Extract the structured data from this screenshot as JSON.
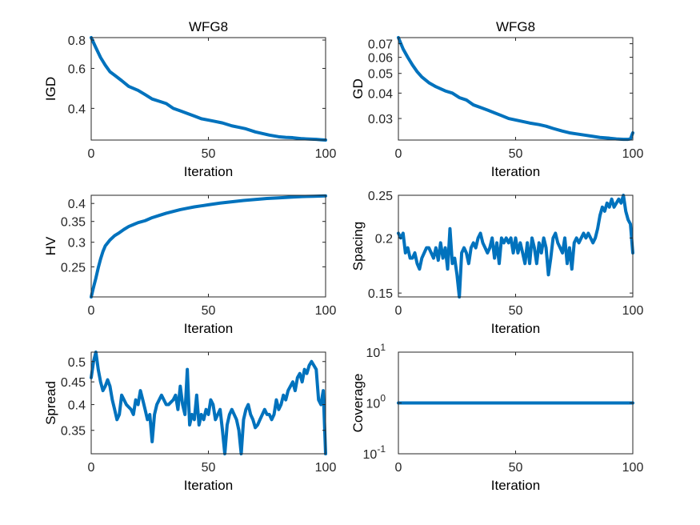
{
  "chart_data": [
    {
      "type": "line",
      "title": "WFG8",
      "xlabel": "Iteration",
      "ylabel": "IGD",
      "yscale": "log",
      "xlim": [
        0,
        100
      ],
      "ylim": [
        0.29,
        0.82
      ],
      "xticks": [
        0,
        50,
        100
      ],
      "yticks": [
        {
          "v": 0.4,
          "label": "0.4"
        },
        {
          "v": 0.6,
          "label": "0.6"
        },
        {
          "v": 0.8,
          "label": "0.8"
        }
      ],
      "color": "#0072BD",
      "series": [
        {
          "x": [
            0,
            2,
            4,
            6,
            8,
            10,
            13,
            16,
            20,
            23,
            26,
            29,
            32,
            35,
            38,
            41,
            44,
            47,
            50,
            53,
            56,
            60,
            63,
            66,
            70,
            73,
            76,
            80,
            83,
            86,
            90,
            93,
            96,
            98,
            100
          ],
          "values": [
            0.82,
            0.74,
            0.67,
            0.62,
            0.58,
            0.56,
            0.53,
            0.5,
            0.48,
            0.46,
            0.44,
            0.43,
            0.42,
            0.4,
            0.39,
            0.38,
            0.37,
            0.36,
            0.355,
            0.35,
            0.345,
            0.335,
            0.33,
            0.325,
            0.315,
            0.31,
            0.305,
            0.3,
            0.298,
            0.297,
            0.294,
            0.293,
            0.292,
            0.291,
            0.29
          ]
        }
      ]
    },
    {
      "type": "line",
      "title": "WFG8",
      "xlabel": "Iteration",
      "ylabel": "GD",
      "yscale": "log",
      "xlim": [
        0,
        100
      ],
      "ylim": [
        0.0235,
        0.075
      ],
      "xticks": [
        0,
        50,
        100
      ],
      "yticks": [
        {
          "v": 0.03,
          "label": "0.03"
        },
        {
          "v": 0.04,
          "label": "0.04"
        },
        {
          "v": 0.05,
          "label": "0.05"
        },
        {
          "v": 0.06,
          "label": "0.06"
        },
        {
          "v": 0.07,
          "label": "0.07"
        }
      ],
      "color": "#0072BD",
      "series": [
        {
          "x": [
            0,
            2,
            4,
            6,
            8,
            10,
            13,
            16,
            20,
            23,
            26,
            29,
            32,
            35,
            38,
            41,
            44,
            47,
            50,
            53,
            56,
            60,
            63,
            66,
            70,
            73,
            76,
            80,
            83,
            86,
            90,
            93,
            96,
            98,
            99,
            100
          ],
          "values": [
            0.075,
            0.066,
            0.06,
            0.055,
            0.051,
            0.048,
            0.045,
            0.043,
            0.041,
            0.04,
            0.038,
            0.037,
            0.035,
            0.034,
            0.033,
            0.032,
            0.031,
            0.03,
            0.0295,
            0.029,
            0.0285,
            0.028,
            0.0275,
            0.0268,
            0.026,
            0.0255,
            0.0252,
            0.0248,
            0.0245,
            0.0242,
            0.024,
            0.0238,
            0.0237,
            0.0237,
            0.0238,
            0.0255
          ]
        }
      ]
    },
    {
      "type": "line",
      "title": "",
      "xlabel": "Iteration",
      "ylabel": "HV",
      "yscale": "log",
      "xlim": [
        0,
        100
      ],
      "ylim": [
        0.2,
        0.425
      ],
      "xticks": [
        0,
        50,
        100
      ],
      "yticks": [
        {
          "v": 0.25,
          "label": "0.25"
        },
        {
          "v": 0.3,
          "label": "0.3"
        },
        {
          "v": 0.35,
          "label": "0.35"
        },
        {
          "v": 0.4,
          "label": "0.4"
        }
      ],
      "color": "#0072BD",
      "series": [
        {
          "x": [
            0,
            1,
            2,
            3,
            4,
            5,
            6,
            8,
            10,
            12,
            14,
            16,
            18,
            20,
            23,
            26,
            29,
            32,
            35,
            38,
            41,
            44,
            47,
            50,
            55,
            60,
            65,
            70,
            75,
            80,
            85,
            90,
            95,
            100
          ],
          "values": [
            0.2,
            0.215,
            0.23,
            0.248,
            0.265,
            0.28,
            0.292,
            0.305,
            0.315,
            0.322,
            0.33,
            0.337,
            0.342,
            0.347,
            0.352,
            0.36,
            0.366,
            0.372,
            0.377,
            0.382,
            0.386,
            0.39,
            0.393,
            0.396,
            0.401,
            0.405,
            0.409,
            0.412,
            0.415,
            0.417,
            0.419,
            0.421,
            0.422,
            0.423
          ]
        }
      ]
    },
    {
      "type": "line",
      "title": "",
      "xlabel": "Iteration",
      "ylabel": "Spacing",
      "yscale": "log",
      "xlim": [
        0,
        100
      ],
      "ylim": [
        0.147,
        0.25
      ],
      "xticks": [
        0,
        50,
        100
      ],
      "yticks": [
        {
          "v": 0.15,
          "label": "0.15"
        },
        {
          "v": 0.2,
          "label": "0.2"
        },
        {
          "v": 0.25,
          "label": "0.25"
        }
      ],
      "color": "#0072BD",
      "series": [
        {
          "x": [
            0,
            1,
            2,
            3,
            4,
            5,
            6,
            7,
            8,
            9,
            10,
            11,
            12,
            13,
            14,
            15,
            16,
            17,
            18,
            19,
            20,
            21,
            22,
            23,
            24,
            25,
            26,
            27,
            28,
            29,
            30,
            31,
            32,
            33,
            34,
            35,
            36,
            37,
            38,
            39,
            40,
            41,
            42,
            43,
            44,
            45,
            46,
            47,
            48,
            49,
            50,
            51,
            52,
            53,
            54,
            55,
            56,
            57,
            58,
            59,
            60,
            61,
            62,
            63,
            64,
            65,
            66,
            67,
            68,
            69,
            70,
            71,
            72,
            73,
            74,
            75,
            76,
            77,
            78,
            79,
            80,
            81,
            82,
            83,
            84,
            85,
            86,
            87,
            88,
            89,
            90,
            91,
            92,
            93,
            94,
            95,
            96,
            97,
            98,
            99,
            100
          ],
          "values": [
            0.205,
            0.2,
            0.205,
            0.185,
            0.19,
            0.18,
            0.18,
            0.185,
            0.175,
            0.17,
            0.18,
            0.185,
            0.19,
            0.19,
            0.185,
            0.18,
            0.19,
            0.178,
            0.195,
            0.18,
            0.19,
            0.17,
            0.21,
            0.175,
            0.18,
            0.165,
            0.147,
            0.185,
            0.19,
            0.185,
            0.175,
            0.19,
            0.195,
            0.19,
            0.2,
            0.205,
            0.195,
            0.19,
            0.185,
            0.19,
            0.2,
            0.18,
            0.195,
            0.175,
            0.2,
            0.195,
            0.2,
            0.195,
            0.2,
            0.185,
            0.2,
            0.185,
            0.195,
            0.185,
            0.175,
            0.195,
            0.175,
            0.2,
            0.19,
            0.175,
            0.195,
            0.185,
            0.2,
            0.19,
            0.165,
            0.18,
            0.2,
            0.205,
            0.195,
            0.19,
            0.185,
            0.2,
            0.175,
            0.19,
            0.17,
            0.195,
            0.2,
            0.195,
            0.2,
            0.205,
            0.2,
            0.205,
            0.2,
            0.195,
            0.2,
            0.21,
            0.225,
            0.235,
            0.23,
            0.24,
            0.235,
            0.245,
            0.235,
            0.24,
            0.245,
            0.24,
            0.25,
            0.23,
            0.22,
            0.215,
            0.185
          ]
        }
      ]
    },
    {
      "type": "line",
      "title": "",
      "xlabel": "Iteration",
      "ylabel": "Spread",
      "yscale": "log",
      "xlim": [
        0,
        100
      ],
      "ylim": [
        0.31,
        0.525
      ],
      "xticks": [
        0,
        50,
        100
      ],
      "yticks": [
        {
          "v": 0.35,
          "label": "0.35"
        },
        {
          "v": 0.4,
          "label": "0.4"
        },
        {
          "v": 0.45,
          "label": "0.45"
        },
        {
          "v": 0.5,
          "label": "0.5"
        }
      ],
      "color": "#0072BD",
      "series": [
        {
          "x": [
            0,
            1,
            2,
            3,
            4,
            5,
            6,
            7,
            8,
            9,
            10,
            11,
            12,
            13,
            14,
            15,
            16,
            17,
            18,
            19,
            20,
            21,
            22,
            23,
            24,
            25,
            26,
            27,
            28,
            29,
            30,
            31,
            32,
            33,
            34,
            35,
            36,
            37,
            38,
            39,
            40,
            41,
            42,
            43,
            44,
            45,
            46,
            47,
            48,
            49,
            50,
            51,
            52,
            53,
            54,
            55,
            56,
            57,
            58,
            59,
            60,
            61,
            62,
            63,
            64,
            65,
            66,
            67,
            68,
            69,
            70,
            71,
            72,
            73,
            74,
            75,
            76,
            77,
            78,
            79,
            80,
            81,
            82,
            83,
            84,
            85,
            86,
            87,
            88,
            89,
            90,
            91,
            92,
            93,
            94,
            95,
            96,
            97,
            98,
            99,
            100
          ],
          "values": [
            0.46,
            0.5,
            0.525,
            0.48,
            0.45,
            0.43,
            0.44,
            0.455,
            0.44,
            0.41,
            0.39,
            0.37,
            0.38,
            0.42,
            0.41,
            0.4,
            0.395,
            0.39,
            0.38,
            0.41,
            0.4,
            0.43,
            0.41,
            0.39,
            0.37,
            0.38,
            0.33,
            0.38,
            0.4,
            0.41,
            0.42,
            0.41,
            0.4,
            0.4,
            0.405,
            0.41,
            0.42,
            0.39,
            0.44,
            0.4,
            0.38,
            0.48,
            0.36,
            0.38,
            0.37,
            0.42,
            0.36,
            0.38,
            0.37,
            0.39,
            0.38,
            0.41,
            0.4,
            0.37,
            0.38,
            0.39,
            0.35,
            0.31,
            0.36,
            0.38,
            0.39,
            0.38,
            0.37,
            0.35,
            0.31,
            0.37,
            0.39,
            0.4,
            0.38,
            0.37,
            0.355,
            0.36,
            0.37,
            0.38,
            0.39,
            0.38,
            0.38,
            0.37,
            0.38,
            0.41,
            0.39,
            0.4,
            0.42,
            0.41,
            0.43,
            0.44,
            0.45,
            0.43,
            0.46,
            0.47,
            0.45,
            0.48,
            0.47,
            0.49,
            0.5,
            0.49,
            0.48,
            0.41,
            0.4,
            0.43,
            0.31
          ]
        }
      ]
    },
    {
      "type": "line",
      "title": "",
      "xlabel": "Iteration",
      "ylabel": "Coverage",
      "yscale": "log",
      "xlim": [
        0,
        100
      ],
      "ylim": [
        0.1,
        10
      ],
      "xticks": [
        0,
        50,
        100
      ],
      "yticks": [
        {
          "v": 0.1,
          "base": "10",
          "exp": "-1"
        },
        {
          "v": 1,
          "base": "10",
          "exp": "0"
        },
        {
          "v": 10,
          "base": "10",
          "exp": "1"
        }
      ],
      "color": "#0072BD",
      "series": [
        {
          "x": [
            0,
            100
          ],
          "values": [
            1,
            1
          ]
        }
      ]
    }
  ]
}
